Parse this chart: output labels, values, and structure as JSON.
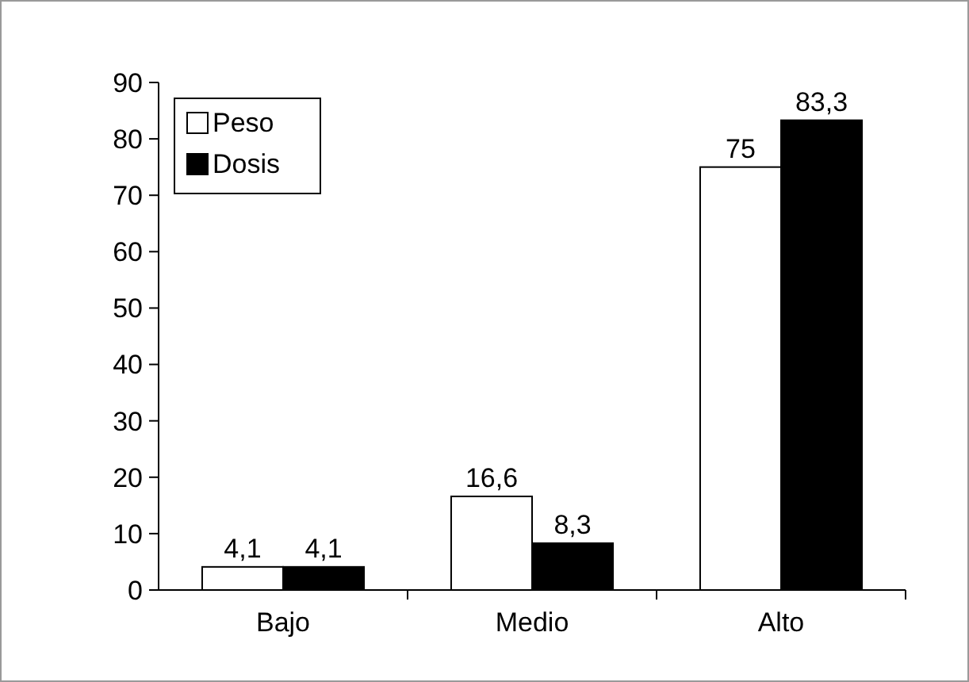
{
  "chart_data": {
    "type": "bar",
    "categories": [
      "Bajo",
      "Medio",
      "Alto"
    ],
    "series": [
      {
        "name": "Peso",
        "color": "#ffffff",
        "values": [
          4.1,
          16.6,
          75
        ],
        "value_labels": [
          "4,1",
          "16,6",
          "75"
        ]
      },
      {
        "name": "Dosis",
        "color": "#000000",
        "values": [
          4.1,
          8.3,
          83.3
        ],
        "value_labels": [
          "4,1",
          "8,3",
          "83,3"
        ]
      }
    ],
    "ylim": [
      0,
      90
    ],
    "yticks": [
      0,
      10,
      20,
      30,
      40,
      50,
      60,
      70,
      80,
      90
    ],
    "grid": false,
    "legend": "top left"
  }
}
